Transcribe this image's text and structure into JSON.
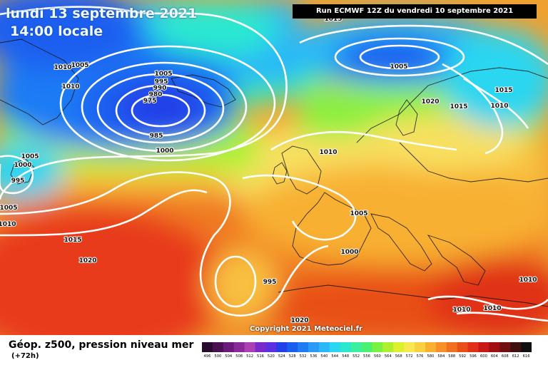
{
  "header": {
    "date": "lundi 13 septembre 2021",
    "time": "14:00 locale",
    "run": "Run ECMWF 12Z du vendredi 10 septembre 2021"
  },
  "copyright": "Copyright 2021 Meteociel.fr",
  "footer": {
    "title": "Géop. z500, pression niveau mer",
    "step": "(+72h)"
  },
  "scale": {
    "labels": [
      "496",
      "500",
      "504",
      "508",
      "512",
      "516",
      "520",
      "524",
      "528",
      "532",
      "536",
      "540",
      "544",
      "548",
      "552",
      "556",
      "560",
      "564",
      "568",
      "572",
      "576",
      "580",
      "584",
      "588",
      "592",
      "596",
      "600",
      "604",
      "608",
      "612",
      "616"
    ],
    "colors": [
      "#2a0a2e",
      "#4a1050",
      "#6a1a7a",
      "#8a2a9a",
      "#aa40b4",
      "#7a2acb",
      "#5a30e0",
      "#2040e8",
      "#1a5ef0",
      "#1f7cf5",
      "#2a9af8",
      "#2ab8f8",
      "#2ad6f0",
      "#2ae8d0",
      "#3af0a0",
      "#4af070",
      "#7af040",
      "#aef030",
      "#dcf030",
      "#f8e850",
      "#f8d040",
      "#f8b030",
      "#f89028",
      "#f07020",
      "#e85018",
      "#e03018",
      "#c81818",
      "#a01010",
      "#701010",
      "#401010",
      "#101010"
    ]
  },
  "isobars": [
    {
      "text": "1015"
    },
    {
      "text": "1005"
    },
    {
      "text": "1010"
    },
    {
      "text": "1010"
    },
    {
      "text": "1005"
    },
    {
      "text": "995"
    },
    {
      "text": "990"
    },
    {
      "text": "980"
    },
    {
      "text": "975"
    },
    {
      "text": "985"
    },
    {
      "text": "1000"
    },
    {
      "text": "1005"
    },
    {
      "text": "1000"
    },
    {
      "text": "995"
    },
    {
      "text": "1005"
    },
    {
      "text": "1010"
    },
    {
      "text": "1015"
    },
    {
      "text": "1020"
    },
    {
      "text": "1005"
    },
    {
      "text": "1010"
    },
    {
      "text": "1005"
    },
    {
      "text": "1000"
    },
    {
      "text": "995"
    },
    {
      "text": "1020"
    },
    {
      "text": "1015"
    },
    {
      "text": "1015"
    },
    {
      "text": "1010"
    },
    {
      "text": "1020"
    },
    {
      "text": "1010"
    },
    {
      "text": "1010"
    },
    {
      "text": "1010"
    }
  ]
}
